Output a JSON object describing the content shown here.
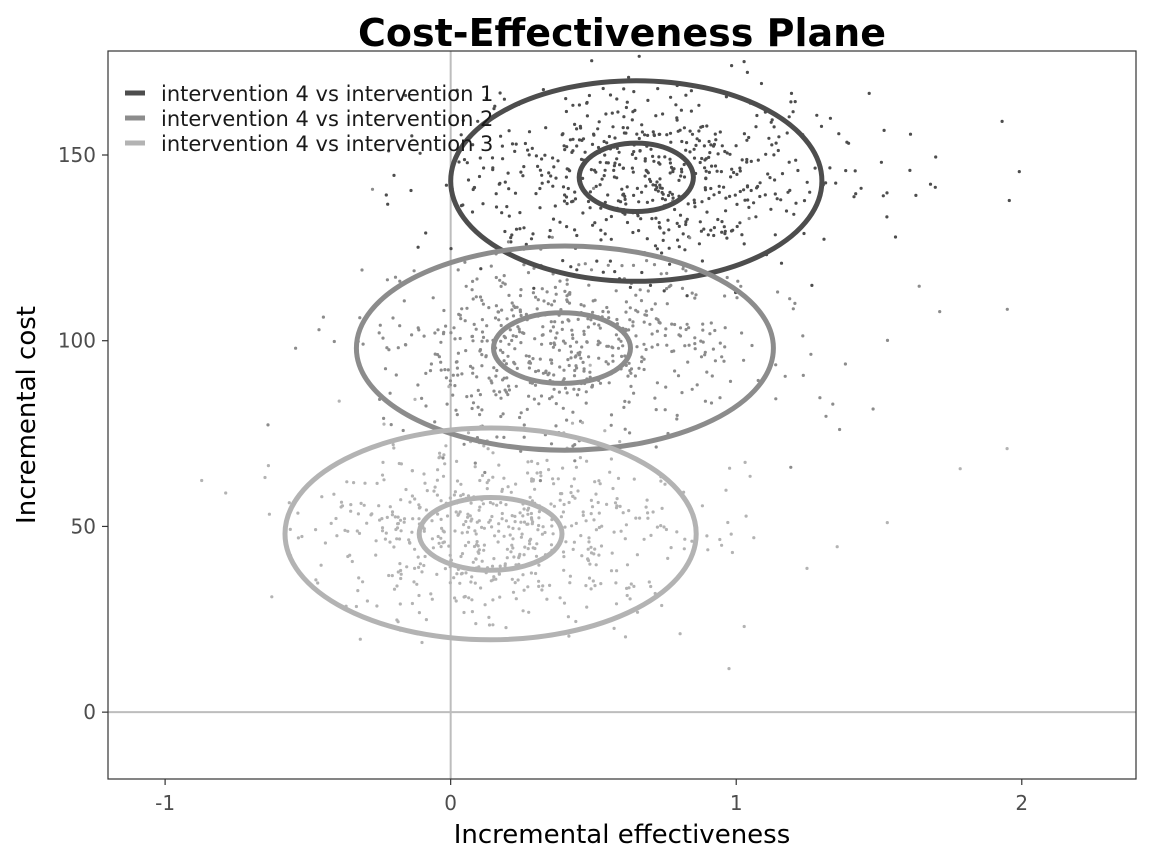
{
  "chart_data": {
    "type": "scatter",
    "title": "Cost-Effectiveness Plane",
    "xlabel": "Incremental effectiveness",
    "ylabel": "Incremental cost",
    "xlim": [
      -1.2,
      2.4
    ],
    "ylim": [
      -18,
      178
    ],
    "xticks": [
      -1,
      0,
      1,
      2
    ],
    "yticks": [
      0,
      50,
      100,
      150
    ],
    "grid": false,
    "reference_lines": {
      "x": 0,
      "y": 0
    },
    "legend_position": "top-left",
    "series": [
      {
        "name": "intervention 4 vs intervention 1",
        "color": "#4d4d4d",
        "n_points": 600,
        "center": [
          0.65,
          144
        ],
        "sd": [
          0.33,
          12
        ],
        "contours": [
          {
            "level": "inner",
            "center": [
              0.65,
              144
            ],
            "radii": [
              0.2,
              9.2
            ]
          },
          {
            "level": "outer",
            "center": [
              0.65,
              143
            ],
            "radii": [
              0.65,
              27
            ]
          }
        ]
      },
      {
        "name": "intervention 4 vs intervention 2",
        "color": "#8c8c8c",
        "n_points": 600,
        "center": [
          0.38,
          98
        ],
        "sd": [
          0.33,
          12
        ],
        "contours": [
          {
            "level": "inner",
            "center": [
              0.39,
              98
            ],
            "radii": [
              0.24,
              9.5
            ]
          },
          {
            "level": "outer",
            "center": [
              0.4,
              98
            ],
            "radii": [
              0.73,
              27.5
            ]
          }
        ]
      },
      {
        "name": "intervention 4 vs intervention 3",
        "color": "#b3b3b3",
        "n_points": 600,
        "center": [
          0.13,
          48
        ],
        "sd": [
          0.33,
          12
        ],
        "contours": [
          {
            "level": "inner",
            "center": [
              0.14,
              48
            ],
            "radii": [
              0.25,
              9.8
            ]
          },
          {
            "level": "outer",
            "center": [
              0.14,
              48
            ],
            "radii": [
              0.72,
              28.5
            ]
          }
        ]
      }
    ]
  }
}
